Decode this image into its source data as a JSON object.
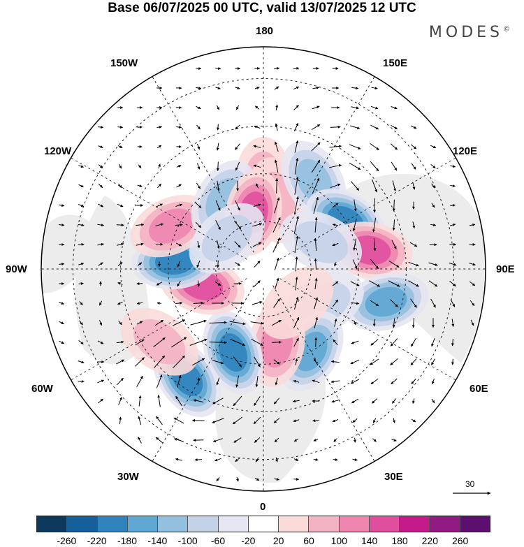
{
  "title": "Base 06/07/2025 00 UTC, valid 13/07/2025 12 UTC",
  "brand": "MODES",
  "brand_mark": "©",
  "longitude_labels": {
    "top": "180",
    "bottom": "0",
    "left": "90W",
    "right": "90E",
    "upper_left": "150W",
    "upper_right": "150E",
    "mid_upper_left": "120W",
    "mid_upper_right": "120E",
    "mid_lower_left": "60W",
    "mid_lower_right": "60E",
    "lower_left": "30W",
    "lower_right": "30E"
  },
  "reference_vector": "30",
  "colorbar": {
    "colors": [
      "#0d3a5c",
      "#15609a",
      "#2f84bd",
      "#5ea7d3",
      "#94c0e0",
      "#c4d2e8",
      "#e6e6f2",
      "#ffffff",
      "#fbdada",
      "#f4b3c2",
      "#ee86b0",
      "#e04f9e",
      "#c51b8a",
      "#921a83",
      "#5c0f6e"
    ],
    "ticks": [
      "-260",
      "-220",
      "-180",
      "-140",
      "-100",
      "-60",
      "-20",
      "20",
      "60",
      "100",
      "140",
      "180",
      "220",
      "260"
    ]
  },
  "anomalies": [
    {
      "lon": 180,
      "lat": 62,
      "value": 90
    },
    {
      "lon": 170,
      "lat": 68,
      "value": 110
    },
    {
      "lon": 150,
      "lat": 58,
      "value": -150
    },
    {
      "lon": 120,
      "lat": 60,
      "value": -200
    },
    {
      "lon": 100,
      "lat": 56,
      "value": 190
    },
    {
      "lon": 115,
      "lat": 70,
      "value": -110
    },
    {
      "lon": 75,
      "lat": 50,
      "value": -170
    },
    {
      "lon": 60,
      "lat": 68,
      "value": -110
    },
    {
      "lon": 30,
      "lat": 60,
      "value": -160
    },
    {
      "lon": 10,
      "lat": 66,
      "value": 150
    },
    {
      "lon": -20,
      "lat": 62,
      "value": -200
    },
    {
      "lon": -35,
      "lat": 48,
      "value": -210
    },
    {
      "lon": -55,
      "lat": 50,
      "value": 110
    },
    {
      "lon": -75,
      "lat": 70,
      "value": 180
    },
    {
      "lon": -95,
      "lat": 62,
      "value": -200
    },
    {
      "lon": -115,
      "lat": 58,
      "value": 130
    },
    {
      "lon": -150,
      "lat": 65,
      "value": -120
    },
    {
      "lon": -170,
      "lat": 72,
      "value": 160
    },
    {
      "lon": -130,
      "lat": 75,
      "value": -80
    },
    {
      "lon": 45,
      "lat": 75,
      "value": 70
    }
  ]
}
